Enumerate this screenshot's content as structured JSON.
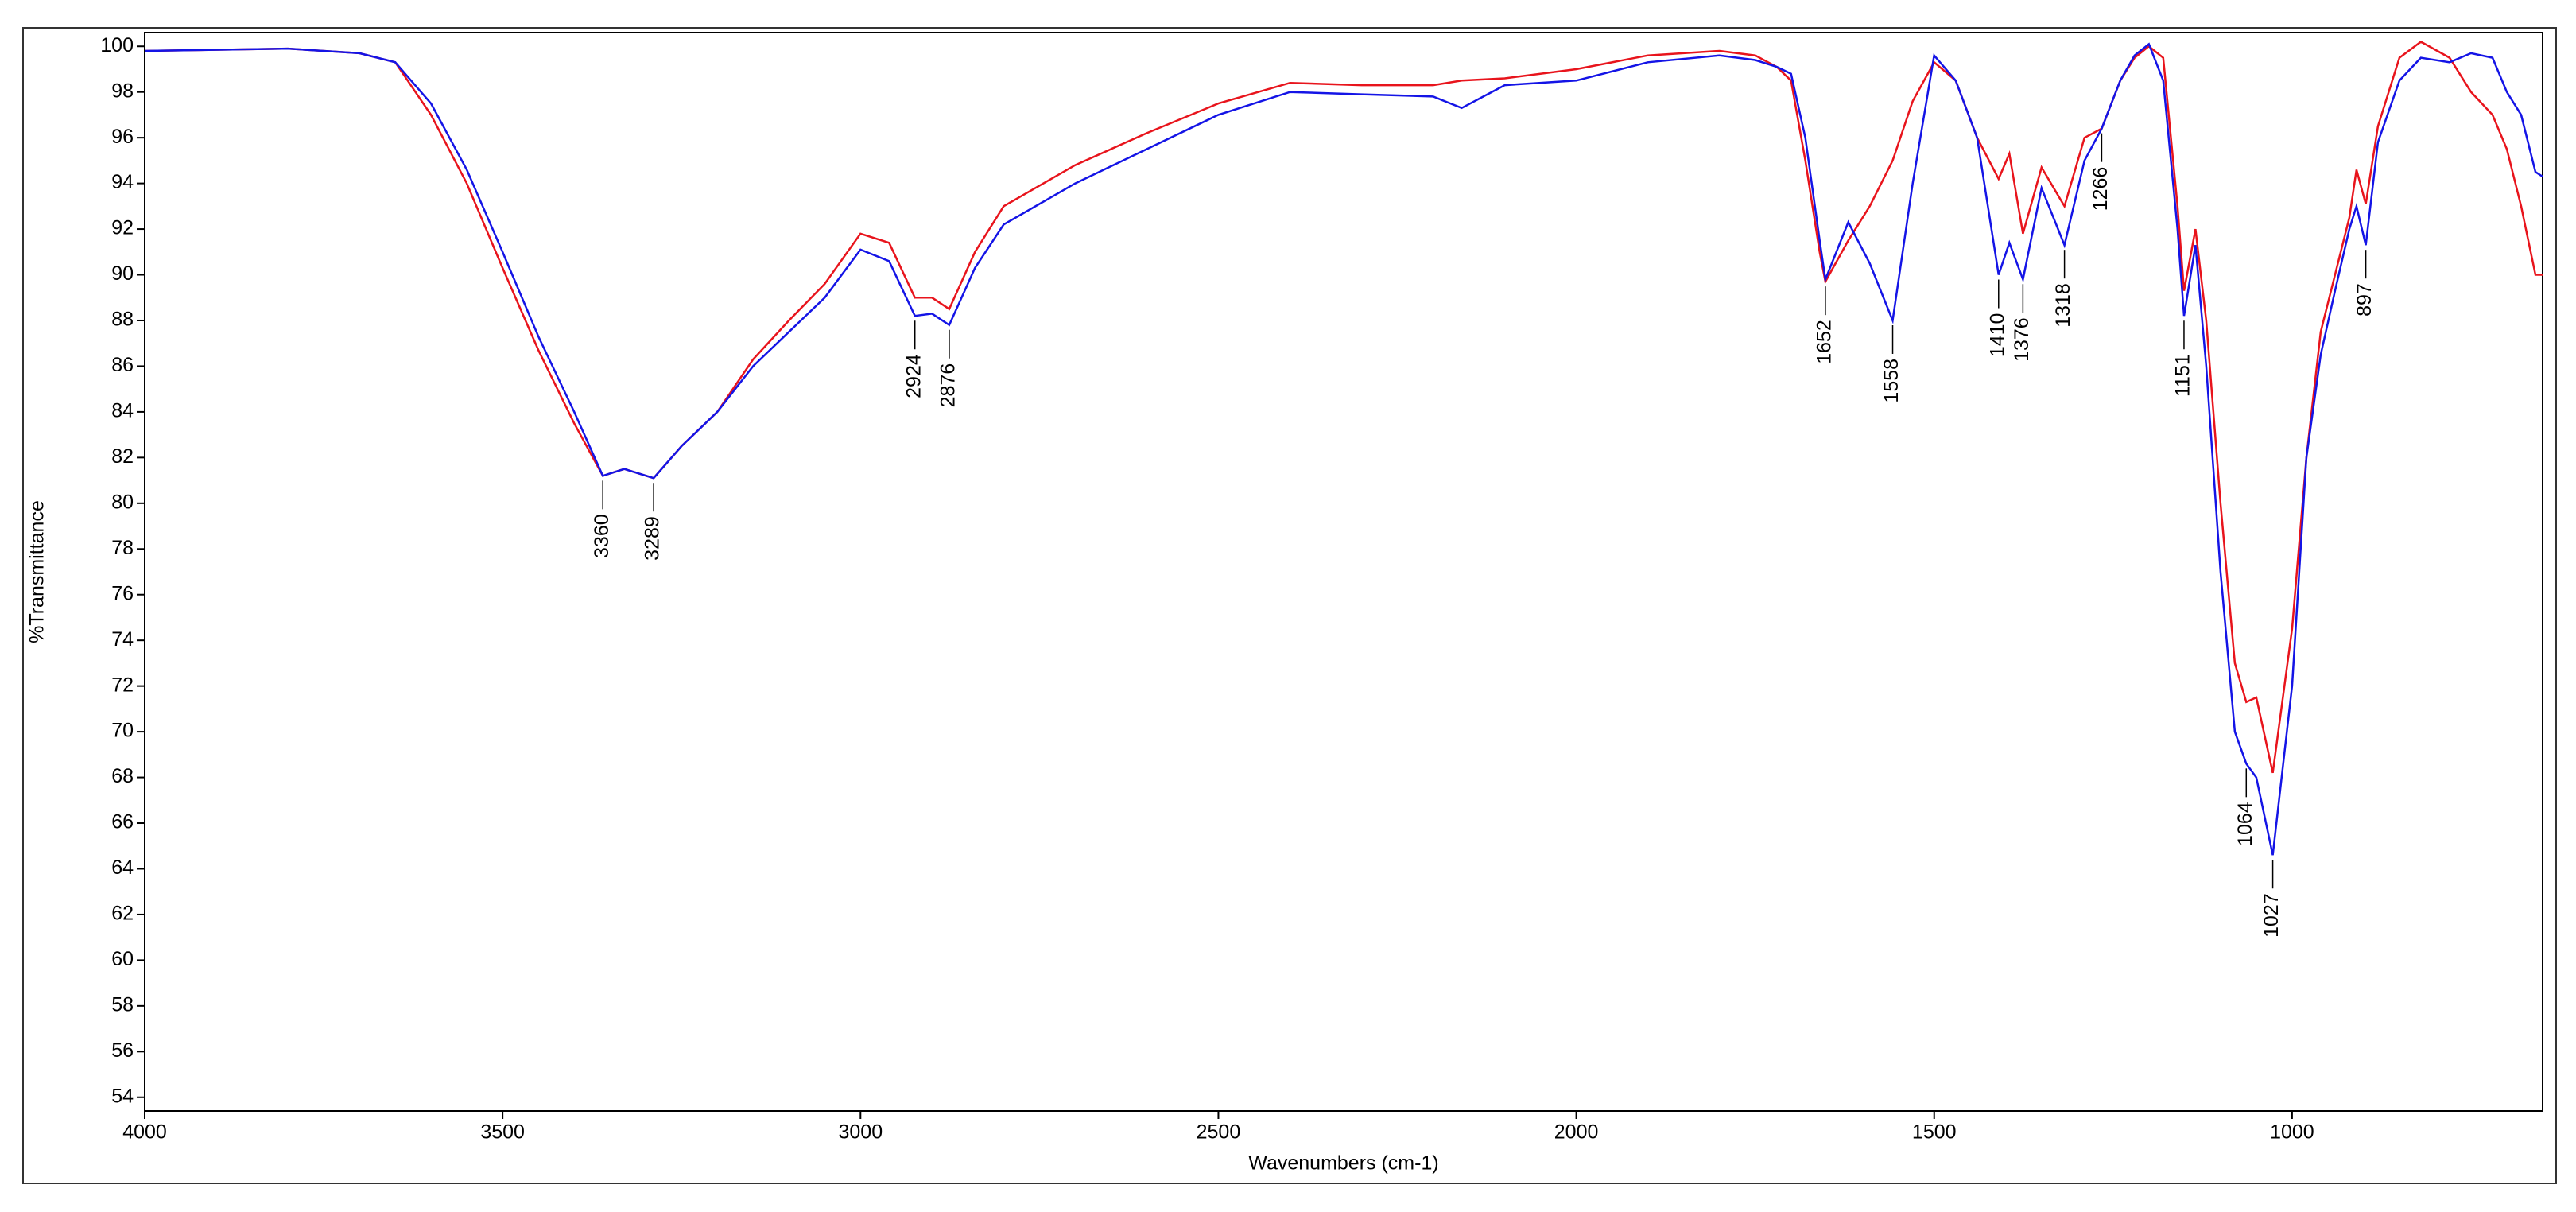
{
  "chart_data": {
    "type": "line",
    "xlabel": "Wavenumbers (cm-1)",
    "ylabel": "%Transmittance",
    "x": [
      4000,
      3800,
      3700,
      3650,
      3600,
      3550,
      3500,
      3450,
      3400,
      3360,
      3330,
      3289,
      3250,
      3200,
      3150,
      3100,
      3050,
      3000,
      2960,
      2924,
      2900,
      2876,
      2840,
      2800,
      2700,
      2600,
      2500,
      2400,
      2300,
      2200,
      2160,
      2100,
      2000,
      1900,
      1800,
      1750,
      1720,
      1700,
      1680,
      1660,
      1652,
      1620,
      1590,
      1558,
      1530,
      1500,
      1470,
      1440,
      1410,
      1395,
      1376,
      1350,
      1318,
      1290,
      1266,
      1240,
      1220,
      1200,
      1180,
      1160,
      1151,
      1135,
      1120,
      1100,
      1080,
      1064,
      1050,
      1027,
      1000,
      980,
      960,
      940,
      920,
      910,
      897,
      880,
      850,
      820,
      780,
      750,
      720,
      700,
      680,
      660,
      650
    ],
    "series": [
      {
        "name": "red",
        "color": "#e8141c",
        "values": [
          99.8,
          99.9,
          99.7,
          99.3,
          97.0,
          94.0,
          90.3,
          86.7,
          83.5,
          81.2,
          81.5,
          81.1,
          82.5,
          84.0,
          86.3,
          88.0,
          89.6,
          91.8,
          91.4,
          89.0,
          89.0,
          88.5,
          91.0,
          93.0,
          94.8,
          96.2,
          97.5,
          98.4,
          98.3,
          98.3,
          98.5,
          98.6,
          99.0,
          99.6,
          99.8,
          99.6,
          99.1,
          98.5,
          95.0,
          91.0,
          89.7,
          91.5,
          93.0,
          95.0,
          97.6,
          99.3,
          98.5,
          96.0,
          94.2,
          95.3,
          91.8,
          94.7,
          93.0,
          96.0,
          96.4,
          98.5,
          99.5,
          100.0,
          99.5,
          93.0,
          89.3,
          92.0,
          88.0,
          80.0,
          73.0,
          71.3,
          71.5,
          68.2,
          74.5,
          82.0,
          87.5,
          90.0,
          92.5,
          94.6,
          93.1,
          96.5,
          99.5,
          100.2,
          99.5,
          98.0,
          97.0,
          95.5,
          93.0,
          90.0,
          90.0
        ]
      },
      {
        "name": "blue",
        "color": "#1414e6",
        "values": [
          99.8,
          99.9,
          99.7,
          99.3,
          97.5,
          94.6,
          91.0,
          87.3,
          84.0,
          81.2,
          81.5,
          81.1,
          82.5,
          84.0,
          86.0,
          87.5,
          89.0,
          91.1,
          90.6,
          88.2,
          88.3,
          87.8,
          90.3,
          92.2,
          94.0,
          95.5,
          97.0,
          98.0,
          97.9,
          97.8,
          97.3,
          98.3,
          98.5,
          99.3,
          99.6,
          99.4,
          99.1,
          98.8,
          96.0,
          91.5,
          89.8,
          92.3,
          90.5,
          88.0,
          94.0,
          99.6,
          98.5,
          96.0,
          90.0,
          91.4,
          89.8,
          93.8,
          91.3,
          95.0,
          96.4,
          98.5,
          99.6,
          100.1,
          98.5,
          92.0,
          88.2,
          91.3,
          86.0,
          77.0,
          70.0,
          68.6,
          68.0,
          64.6,
          72.0,
          82.0,
          86.5,
          89.3,
          92.0,
          93.0,
          91.3,
          95.8,
          98.5,
          99.5,
          99.3,
          99.7,
          99.5,
          98.0,
          97.0,
          94.5,
          94.3
        ]
      }
    ],
    "peak_labels": [
      3360,
      3289,
      2924,
      2876,
      1652,
      1558,
      1410,
      1376,
      1318,
      1266,
      1151,
      1064,
      1027,
      897
    ],
    "xlim": [
      4000,
      650
    ],
    "xticks": [
      4000,
      3500,
      3000,
      2500,
      2000,
      1500,
      1000
    ],
    "ylim": [
      53.4,
      100.6
    ],
    "yticks": [
      54,
      56,
      58,
      60,
      62,
      64,
      66,
      68,
      70,
      72,
      74,
      76,
      78,
      80,
      82,
      84,
      86,
      88,
      90,
      92,
      94,
      96,
      98,
      100
    ]
  }
}
